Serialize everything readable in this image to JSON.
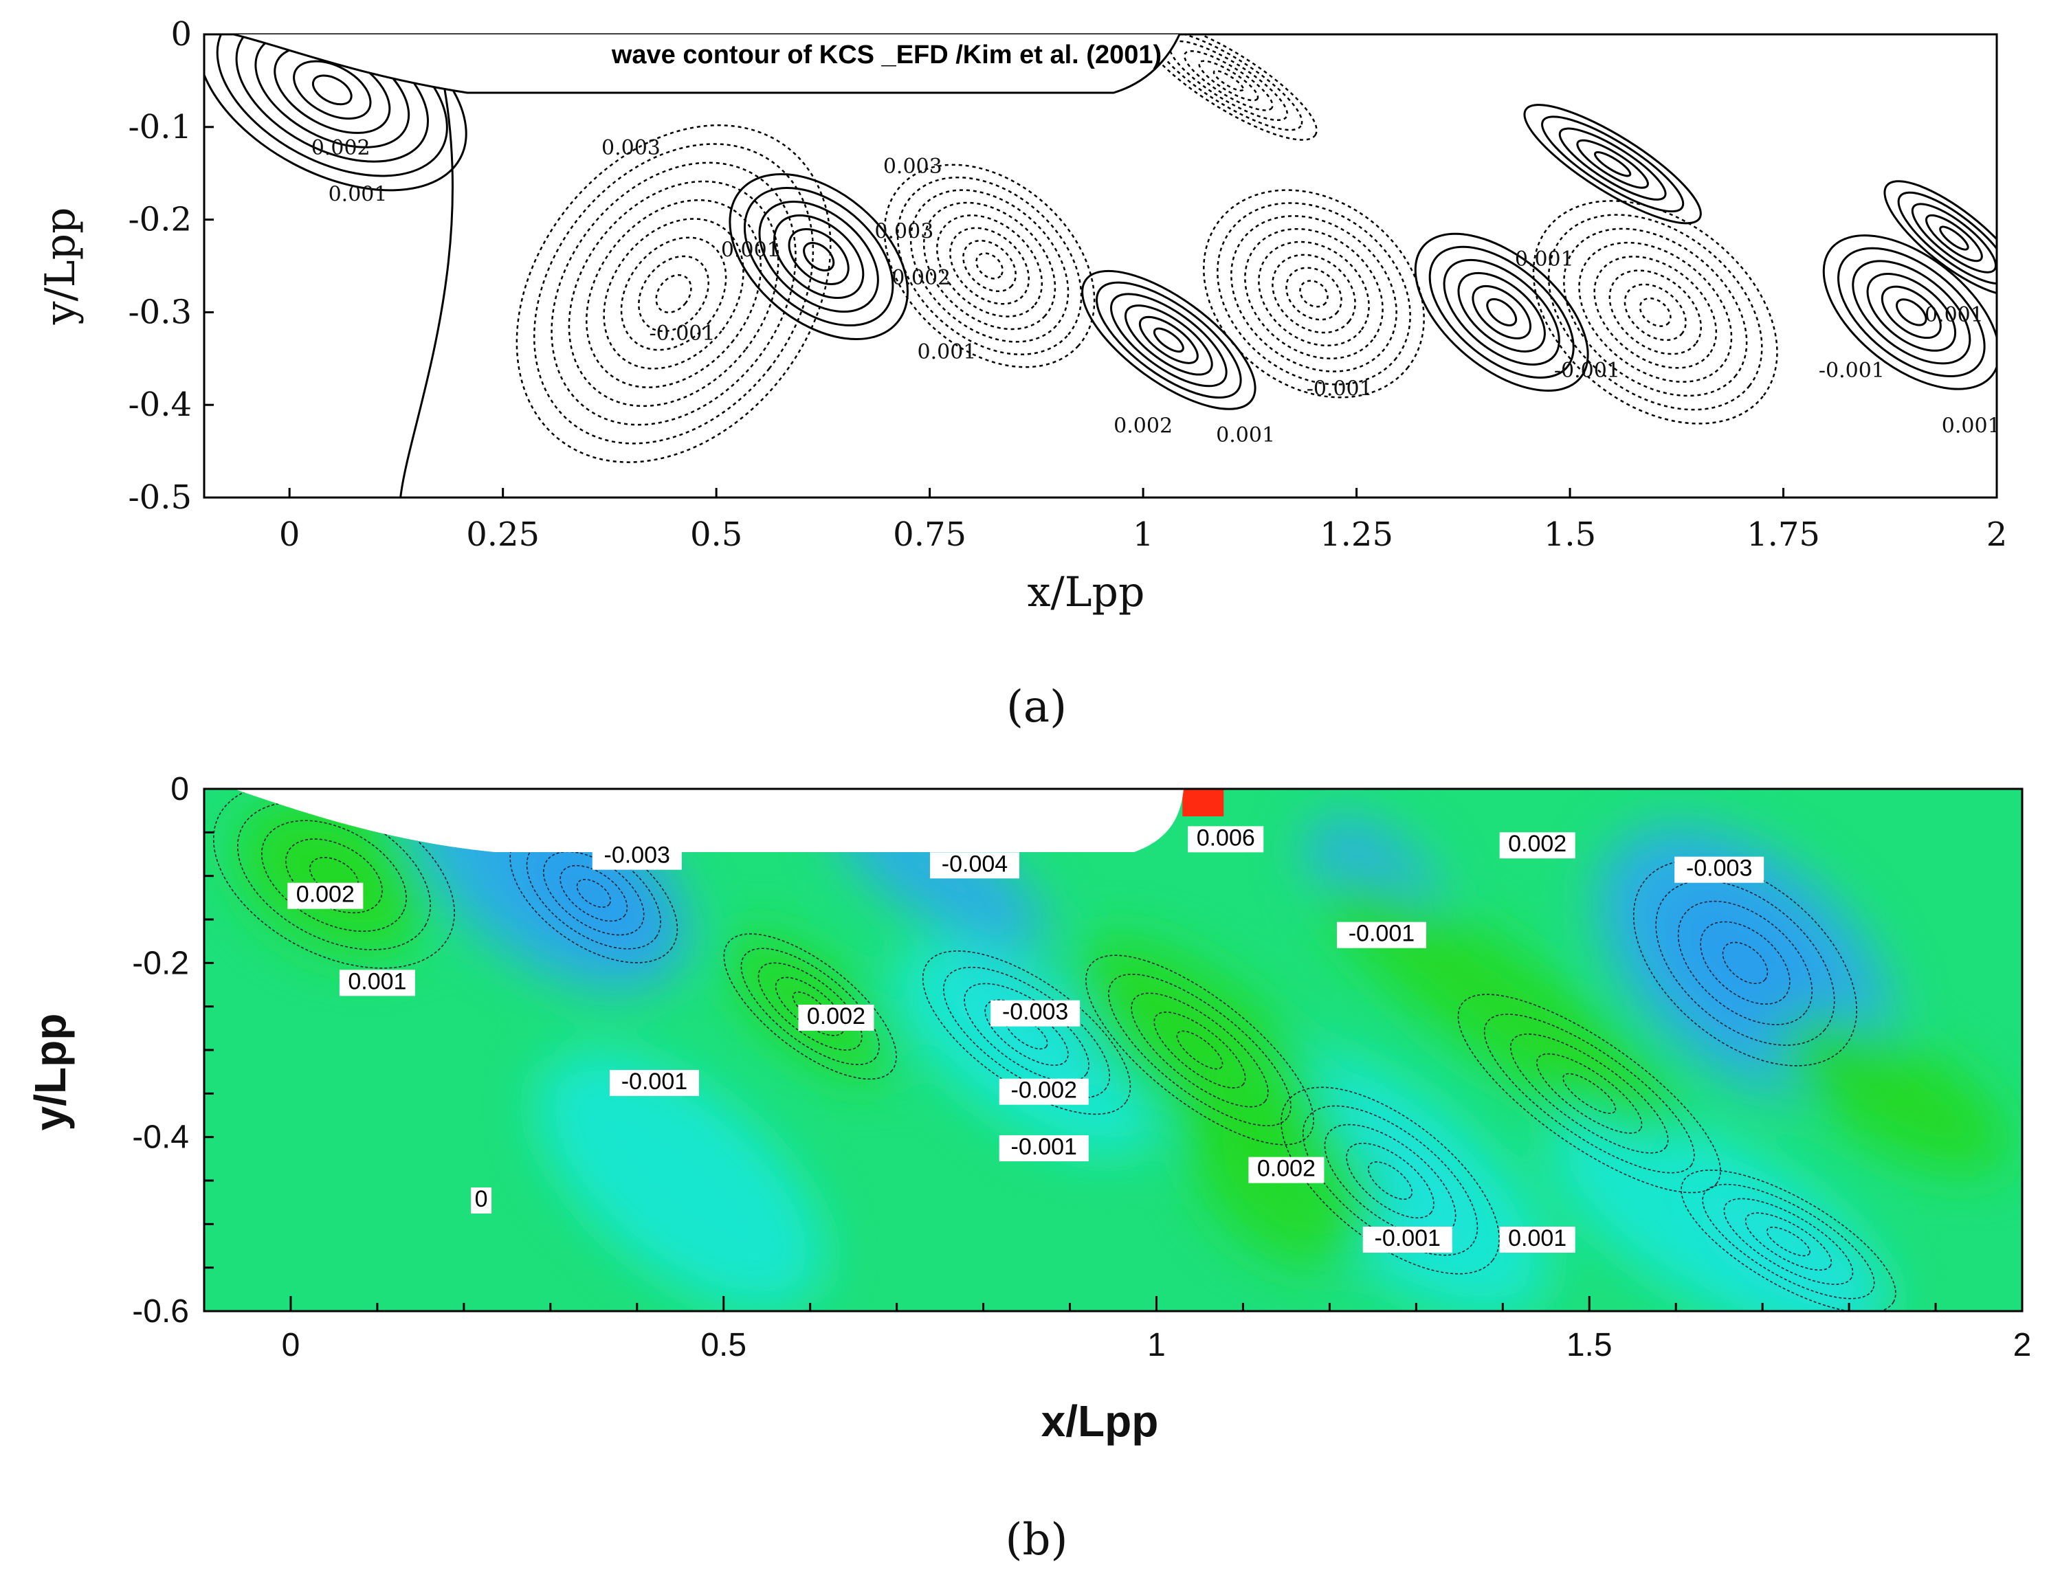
{
  "chart_data": [
    {
      "type": "contour",
      "panel_label": "(a)",
      "title": "wave contour of KCS _EFD /Kim et al. (2001)",
      "xlabel": "x/Lpp",
      "ylabel": "y/Lpp",
      "xlim": [
        -0.1,
        2.0
      ],
      "ylim": [
        -0.5,
        0.0
      ],
      "x_ticks": [
        "0",
        "0.25",
        "0.5",
        "0.75",
        "1",
        "1.25",
        "1.5",
        "1.75",
        "2"
      ],
      "y_ticks": [
        "0",
        "-0.1",
        "-0.2",
        "-0.3",
        "-0.4",
        "-0.5"
      ],
      "contour_labels": [
        {
          "text": "0.002",
          "x": 0.06,
          "y": -0.13
        },
        {
          "text": "0.001",
          "x": 0.08,
          "y": -0.18
        },
        {
          "text": "0.003",
          "x": 0.4,
          "y": -0.13
        },
        {
          "text": "0.001",
          "x": 0.54,
          "y": -0.24
        },
        {
          "text": "-0.001",
          "x": 0.46,
          "y": -0.33
        },
        {
          "text": "0.003",
          "x": 0.73,
          "y": -0.15
        },
        {
          "text": "0.003",
          "x": 0.72,
          "y": -0.22
        },
        {
          "text": "0.002",
          "x": 0.74,
          "y": -0.27
        },
        {
          "text": "0.001",
          "x": 0.77,
          "y": -0.35
        },
        {
          "text": "0.002",
          "x": 1.0,
          "y": -0.43
        },
        {
          "text": "0.001",
          "x": 1.12,
          "y": -0.44
        },
        {
          "text": "-0.001",
          "x": 1.23,
          "y": -0.39
        },
        {
          "text": "0.001",
          "x": 1.47,
          "y": -0.25
        },
        {
          "text": "-0.001",
          "x": 1.52,
          "y": -0.37
        },
        {
          "text": "-0.001",
          "x": 1.83,
          "y": -0.37
        },
        {
          "text": "0.001",
          "x": 1.95,
          "y": -0.31
        },
        {
          "text": "0.001",
          "x": 1.97,
          "y": -0.43
        }
      ]
    },
    {
      "type": "heatmap",
      "panel_label": "(b)",
      "xlabel": "x/Lpp",
      "ylabel": "y/Lpp",
      "xlim": [
        -0.1,
        2.0
      ],
      "ylim": [
        -0.6,
        0.0
      ],
      "x_ticks": [
        "0",
        "0.5",
        "1",
        "1.5",
        "2"
      ],
      "y_ticks": [
        "0",
        "-0.2",
        "-0.4",
        "-0.6"
      ],
      "contour_labels": [
        {
          "text": "-0.003",
          "x": 0.4,
          "y": -0.085
        },
        {
          "text": "-0.004",
          "x": 0.79,
          "y": -0.095
        },
        {
          "text": "0.006",
          "x": 1.08,
          "y": -0.065
        },
        {
          "text": "0.002",
          "x": 1.44,
          "y": -0.072
        },
        {
          "text": "-0.003",
          "x": 1.65,
          "y": -0.1
        },
        {
          "text": "0.002",
          "x": 0.04,
          "y": -0.13
        },
        {
          "text": "-0.001",
          "x": 1.26,
          "y": -0.175
        },
        {
          "text": "0.001",
          "x": 0.1,
          "y": -0.23
        },
        {
          "text": "0.002",
          "x": 0.63,
          "y": -0.27
        },
        {
          "text": "-0.003",
          "x": 0.86,
          "y": -0.265
        },
        {
          "text": "-0.001",
          "x": 0.42,
          "y": -0.345
        },
        {
          "text": "-0.002",
          "x": 0.87,
          "y": -0.355
        },
        {
          "text": "-0.001",
          "x": 0.87,
          "y": -0.42
        },
        {
          "text": "0.002",
          "x": 1.15,
          "y": -0.445
        },
        {
          "text": "-0.001",
          "x": 1.29,
          "y": -0.525
        },
        {
          "text": "0.001",
          "x": 1.44,
          "y": -0.525
        },
        {
          "text": "0",
          "x": 0.22,
          "y": -0.48
        }
      ]
    }
  ],
  "colors": {
    "negative_deep": "#1a3fd8",
    "negative": "#2fa8f0",
    "cyan": "#18e8d8",
    "neutral": "#1ee07a",
    "positive": "#22d820",
    "high": "#ff2a10"
  }
}
